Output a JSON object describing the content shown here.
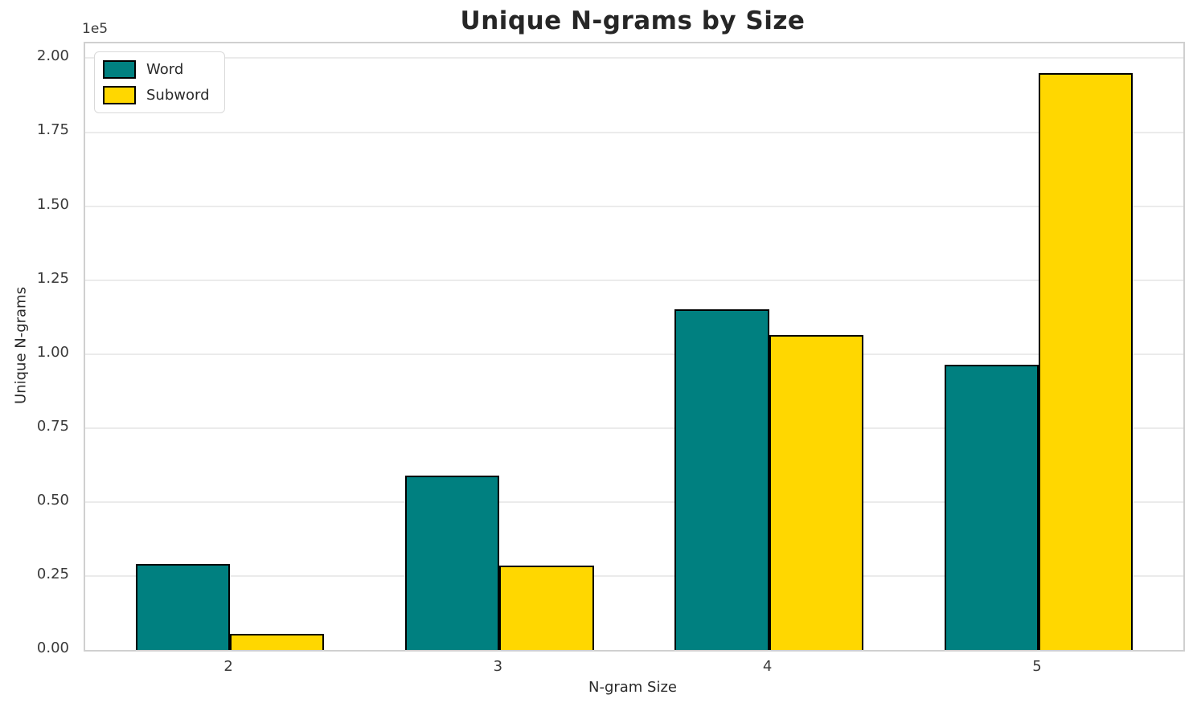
{
  "chart_data": {
    "type": "bar",
    "title": "Unique N-grams by Size",
    "xlabel": "N-gram Size",
    "ylabel": "Unique N-grams",
    "y_offset_text": "1e5",
    "categories": [
      "2",
      "3",
      "4",
      "5"
    ],
    "series": [
      {
        "name": "Word",
        "color": "#008080",
        "values": [
          29000,
          59000,
          115000,
          96500
        ]
      },
      {
        "name": "Subword",
        "color": "#FFD700",
        "values": [
          5300,
          28500,
          106500,
          195000
        ]
      }
    ],
    "ylim": [
      0,
      205000
    ],
    "yticks": [
      0,
      25000,
      50000,
      75000,
      100000,
      125000,
      150000,
      175000,
      200000
    ],
    "ytick_labels": [
      "0.00",
      "0.25",
      "0.50",
      "0.75",
      "1.00",
      "1.25",
      "1.50",
      "1.75",
      "2.00"
    ],
    "bar_width": 0.35,
    "bar_edge_color": "#000000",
    "grid": true,
    "legend_position": "upper left"
  },
  "style": {
    "teal": "#008080",
    "gold": "#FFD700",
    "grid_color": "#ebebeb",
    "spine_color": "#d0d0d0",
    "title_color": "#262626",
    "tick_color": "#3a3a3a"
  }
}
